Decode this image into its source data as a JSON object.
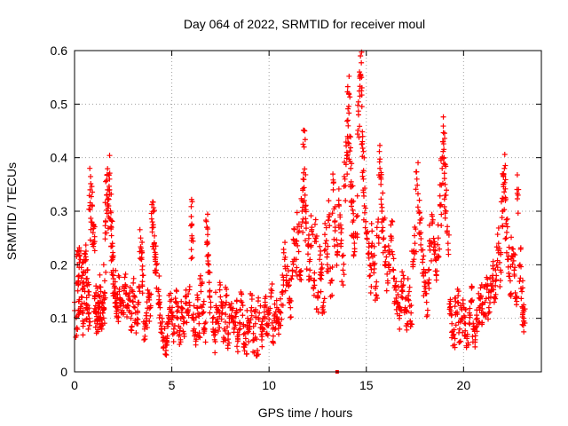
{
  "chart_data": {
    "type": "scatter",
    "title": "Day 064 of 2022, SRMTID for receiver moul",
    "xlabel": "GPS time / hours",
    "ylabel": "SRMTID / TECUs",
    "xlim": [
      0,
      24
    ],
    "ylim": [
      0,
      0.6
    ],
    "xticks": [
      0,
      5,
      10,
      15,
      20
    ],
    "yticks": [
      0,
      0.1,
      0.2,
      0.3,
      0.4,
      0.5,
      0.6
    ],
    "xtick_labels": [
      "0",
      "5",
      "10",
      "15",
      "20"
    ],
    "ytick_labels": [
      "0",
      "0.1",
      "0.2",
      "0.3",
      "0.4",
      "0.5",
      "0.6"
    ],
    "grid": true,
    "marker": "plus",
    "series": [
      {
        "name": "SRMTID",
        "color": "#ff0000",
        "points": [
          [
            0.0,
            0.13
          ],
          [
            0.1,
            0.08
          ],
          [
            0.15,
            0.2
          ],
          [
            0.2,
            0.17
          ],
          [
            0.25,
            0.11
          ],
          [
            0.3,
            0.21
          ],
          [
            0.35,
            0.14
          ],
          [
            0.4,
            0.18
          ],
          [
            0.45,
            0.09
          ],
          [
            0.5,
            0.16
          ],
          [
            0.55,
            0.22
          ],
          [
            0.6,
            0.12
          ],
          [
            0.65,
            0.19
          ],
          [
            0.7,
            0.15
          ],
          [
            0.75,
            0.1
          ],
          [
            0.8,
            0.34
          ],
          [
            0.85,
            0.28
          ],
          [
            0.9,
            0.31
          ],
          [
            0.95,
            0.26
          ],
          [
            1.0,
            0.24
          ],
          [
            1.05,
            0.14
          ],
          [
            1.1,
            0.11
          ],
          [
            1.15,
            0.09
          ],
          [
            1.2,
            0.13
          ],
          [
            1.25,
            0.12
          ],
          [
            1.3,
            0.1
          ],
          [
            1.35,
            0.15
          ],
          [
            1.4,
            0.08
          ],
          [
            1.45,
            0.13
          ],
          [
            1.5,
            0.12
          ],
          [
            1.55,
            0.17
          ],
          [
            1.6,
            0.28
          ],
          [
            1.65,
            0.33
          ],
          [
            1.7,
            0.34
          ],
          [
            1.75,
            0.31
          ],
          [
            1.8,
            0.36
          ],
          [
            1.85,
            0.3
          ],
          [
            1.9,
            0.27
          ],
          [
            1.95,
            0.21
          ],
          [
            2.0,
            0.18
          ],
          [
            2.05,
            0.16
          ],
          [
            2.1,
            0.14
          ],
          [
            2.15,
            0.13
          ],
          [
            2.2,
            0.12
          ],
          [
            2.3,
            0.15
          ],
          [
            2.4,
            0.11
          ],
          [
            2.5,
            0.13
          ],
          [
            2.6,
            0.16
          ],
          [
            2.7,
            0.12
          ],
          [
            2.8,
            0.14
          ],
          [
            2.9,
            0.1
          ],
          [
            3.0,
            0.15
          ],
          [
            3.1,
            0.12
          ],
          [
            3.2,
            0.09
          ],
          [
            3.3,
            0.13
          ],
          [
            3.4,
            0.25
          ],
          [
            3.45,
            0.21
          ],
          [
            3.5,
            0.18
          ],
          [
            3.6,
            0.08
          ],
          [
            3.7,
            0.11
          ],
          [
            3.8,
            0.14
          ],
          [
            3.9,
            0.12
          ],
          [
            4.0,
            0.28
          ],
          [
            4.05,
            0.27
          ],
          [
            4.1,
            0.24
          ],
          [
            4.15,
            0.21
          ],
          [
            4.2,
            0.19
          ],
          [
            4.3,
            0.15
          ],
          [
            4.4,
            0.12
          ],
          [
            4.5,
            0.1
          ],
          [
            4.6,
            0.06
          ],
          [
            4.7,
            0.04
          ],
          [
            4.75,
            0.05
          ],
          [
            4.8,
            0.09
          ],
          [
            4.9,
            0.12
          ],
          [
            5.0,
            0.11
          ],
          [
            5.1,
            0.08
          ],
          [
            5.2,
            0.13
          ],
          [
            5.3,
            0.1
          ],
          [
            5.4,
            0.07
          ],
          [
            5.5,
            0.12
          ],
          [
            5.6,
            0.09
          ],
          [
            5.7,
            0.14
          ],
          [
            5.8,
            0.11
          ],
          [
            5.9,
            0.13
          ],
          [
            6.0,
            0.29
          ],
          [
            6.05,
            0.25
          ],
          [
            6.1,
            0.1
          ],
          [
            6.2,
            0.07
          ],
          [
            6.3,
            0.12
          ],
          [
            6.4,
            0.09
          ],
          [
            6.5,
            0.15
          ],
          [
            6.6,
            0.11
          ],
          [
            6.7,
            0.08
          ],
          [
            6.8,
            0.27
          ],
          [
            6.85,
            0.24
          ],
          [
            6.9,
            0.2
          ],
          [
            7.0,
            0.13
          ],
          [
            7.1,
            0.1
          ],
          [
            7.2,
            0.06
          ],
          [
            7.3,
            0.12
          ],
          [
            7.4,
            0.09
          ],
          [
            7.5,
            0.14
          ],
          [
            7.6,
            0.11
          ],
          [
            7.7,
            0.08
          ],
          [
            7.8,
            0.13
          ],
          [
            7.9,
            0.07
          ],
          [
            8.0,
            0.12
          ],
          [
            8.1,
            0.1
          ],
          [
            8.2,
            0.08
          ],
          [
            8.3,
            0.11
          ],
          [
            8.4,
            0.06
          ],
          [
            8.5,
            0.09
          ],
          [
            8.6,
            0.13
          ],
          [
            8.7,
            0.07
          ],
          [
            8.8,
            0.05
          ],
          [
            8.9,
            0.1
          ],
          [
            9.0,
            0.08
          ],
          [
            9.1,
            0.12
          ],
          [
            9.2,
            0.06
          ],
          [
            9.3,
            0.09
          ],
          [
            9.4,
            0.04
          ],
          [
            9.5,
            0.11
          ],
          [
            9.6,
            0.07
          ],
          [
            9.7,
            0.1
          ],
          [
            9.8,
            0.13
          ],
          [
            9.9,
            0.09
          ],
          [
            10.0,
            0.11
          ],
          [
            10.1,
            0.14
          ],
          [
            10.2,
            0.08
          ],
          [
            10.3,
            0.1
          ],
          [
            10.4,
            0.12
          ],
          [
            10.5,
            0.09
          ],
          [
            10.6,
            0.11
          ],
          [
            10.7,
            0.15
          ],
          [
            10.8,
            0.21
          ],
          [
            10.9,
            0.18
          ],
          [
            11.0,
            0.16
          ],
          [
            11.1,
            0.12
          ],
          [
            11.2,
            0.19
          ],
          [
            11.3,
            0.24
          ],
          [
            11.4,
            0.21
          ],
          [
            11.5,
            0.26
          ],
          [
            11.6,
            0.18
          ],
          [
            11.7,
            0.3
          ],
          [
            11.75,
            0.36
          ],
          [
            11.8,
            0.42
          ],
          [
            11.85,
            0.33
          ],
          [
            11.9,
            0.28
          ],
          [
            12.0,
            0.22
          ],
          [
            12.1,
            0.19
          ],
          [
            12.2,
            0.27
          ],
          [
            12.3,
            0.17
          ],
          [
            12.4,
            0.25
          ],
          [
            12.5,
            0.14
          ],
          [
            12.6,
            0.21
          ],
          [
            12.7,
            0.18
          ],
          [
            12.8,
            0.13
          ],
          [
            12.9,
            0.24
          ],
          [
            13.0,
            0.2
          ],
          [
            13.1,
            0.29
          ],
          [
            13.2,
            0.17
          ],
          [
            13.3,
            0.34
          ],
          [
            13.4,
            0.27
          ],
          [
            13.5,
            0.22
          ],
          [
            13.6,
            0.31
          ],
          [
            13.7,
            0.26
          ],
          [
            13.8,
            0.19
          ],
          [
            13.9,
            0.36
          ],
          [
            14.0,
            0.41
          ],
          [
            14.05,
            0.47
          ],
          [
            14.1,
            0.52
          ],
          [
            14.15,
            0.44
          ],
          [
            14.2,
            0.38
          ],
          [
            14.25,
            0.32
          ],
          [
            14.3,
            0.28
          ],
          [
            14.4,
            0.23
          ],
          [
            14.5,
            0.29
          ],
          [
            14.6,
            0.48
          ],
          [
            14.65,
            0.56
          ],
          [
            14.7,
            0.59
          ],
          [
            14.75,
            0.55
          ],
          [
            14.8,
            0.43
          ],
          [
            14.85,
            0.36
          ],
          [
            14.9,
            0.31
          ],
          [
            15.0,
            0.26
          ],
          [
            15.1,
            0.22
          ],
          [
            15.2,
            0.18
          ],
          [
            15.3,
            0.24
          ],
          [
            15.4,
            0.2
          ],
          [
            15.5,
            0.16
          ],
          [
            15.6,
            0.28
          ],
          [
            15.7,
            0.38
          ],
          [
            15.75,
            0.35
          ],
          [
            15.8,
            0.3
          ],
          [
            15.9,
            0.25
          ],
          [
            16.0,
            0.2
          ],
          [
            16.1,
            0.17
          ],
          [
            16.2,
            0.22
          ],
          [
            16.3,
            0.25
          ],
          [
            16.4,
            0.19
          ],
          [
            16.5,
            0.16
          ],
          [
            16.6,
            0.13
          ],
          [
            16.7,
            0.1
          ],
          [
            16.8,
            0.14
          ],
          [
            16.9,
            0.18
          ],
          [
            17.0,
            0.12
          ],
          [
            17.1,
            0.09
          ],
          [
            17.2,
            0.15
          ],
          [
            17.3,
            0.11
          ],
          [
            17.4,
            0.2
          ],
          [
            17.5,
            0.24
          ],
          [
            17.6,
            0.36
          ],
          [
            17.7,
            0.3
          ],
          [
            17.8,
            0.26
          ],
          [
            17.9,
            0.21
          ],
          [
            18.0,
            0.16
          ],
          [
            18.1,
            0.13
          ],
          [
            18.2,
            0.19
          ],
          [
            18.3,
            0.24
          ],
          [
            18.4,
            0.28
          ],
          [
            18.5,
            0.22
          ],
          [
            18.6,
            0.18
          ],
          [
            18.7,
            0.25
          ],
          [
            18.8,
            0.31
          ],
          [
            18.9,
            0.38
          ],
          [
            18.95,
            0.43
          ],
          [
            19.0,
            0.4
          ],
          [
            19.05,
            0.35
          ],
          [
            19.1,
            0.3
          ],
          [
            19.2,
            0.24
          ],
          [
            19.3,
            0.12
          ],
          [
            19.4,
            0.09
          ],
          [
            19.5,
            0.07
          ],
          [
            19.6,
            0.11
          ],
          [
            19.7,
            0.13
          ],
          [
            19.8,
            0.08
          ],
          [
            19.9,
            0.1
          ],
          [
            20.0,
            0.12
          ],
          [
            20.1,
            0.09
          ],
          [
            20.2,
            0.07
          ],
          [
            20.3,
            0.11
          ],
          [
            20.4,
            0.13
          ],
          [
            20.5,
            0.08
          ],
          [
            20.6,
            0.06
          ],
          [
            20.7,
            0.1
          ],
          [
            20.8,
            0.12
          ],
          [
            20.9,
            0.14
          ],
          [
            21.0,
            0.11
          ],
          [
            21.1,
            0.13
          ],
          [
            21.2,
            0.16
          ],
          [
            21.3,
            0.12
          ],
          [
            21.4,
            0.15
          ],
          [
            21.5,
            0.18
          ],
          [
            21.6,
            0.14
          ],
          [
            21.7,
            0.2
          ],
          [
            21.8,
            0.24
          ],
          [
            21.9,
            0.19
          ],
          [
            22.0,
            0.3
          ],
          [
            22.05,
            0.35
          ],
          [
            22.1,
            0.38
          ],
          [
            22.15,
            0.32
          ],
          [
            22.2,
            0.25
          ],
          [
            22.3,
            0.21
          ],
          [
            22.4,
            0.17
          ],
          [
            22.5,
            0.23
          ],
          [
            22.6,
            0.19
          ],
          [
            22.7,
            0.14
          ],
          [
            22.8,
            0.33
          ],
          [
            22.9,
            0.2
          ],
          [
            23.0,
            0.15
          ],
          [
            23.05,
            0.11
          ],
          [
            23.1,
            0.1
          ]
        ]
      }
    ],
    "noise_seed": 64
  }
}
